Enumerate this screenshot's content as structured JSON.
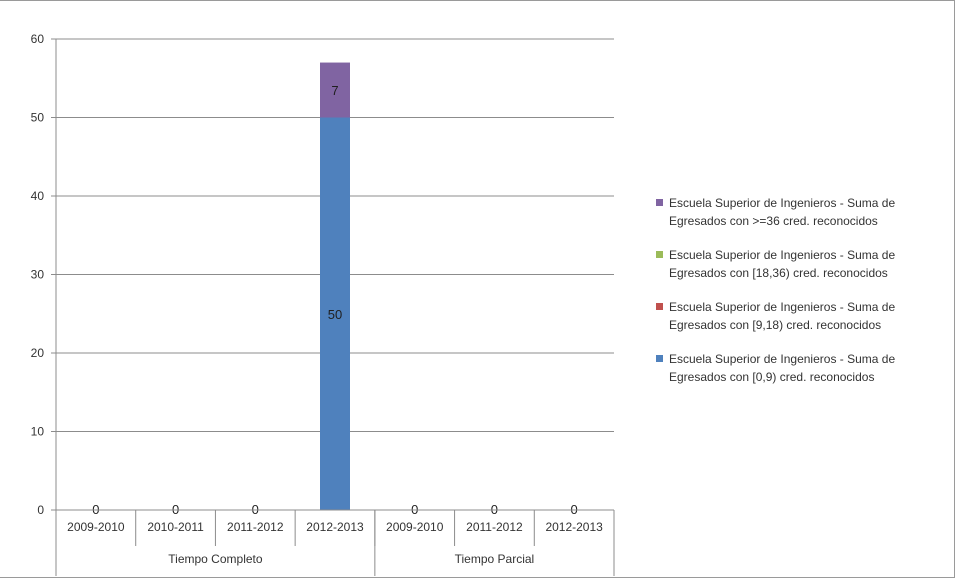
{
  "chart_data": {
    "type": "bar",
    "stacked": true,
    "groups": [
      {
        "label": "Tiempo Completo",
        "categories": [
          "2009-2010",
          "2010-2011",
          "2011-2012",
          "2012-2013"
        ]
      },
      {
        "label": "Tiempo Parcial",
        "categories": [
          "2009-2010",
          "2011-2012",
          "2012-2013"
        ]
      }
    ],
    "categories": [
      "2009-2010",
      "2010-2011",
      "2011-2012",
      "2012-2013",
      "2009-2010",
      "2011-2012",
      "2012-2013"
    ],
    "series": [
      {
        "name": "Escuela Superior de Ingenieros - Suma de Egresados con [0,9) cred. reconocidos",
        "color": "#4f81bd",
        "values": [
          0,
          0,
          0,
          50,
          0,
          0,
          0
        ]
      },
      {
        "name": "Escuela Superior de Ingenieros - Suma de Egresados con [9,18) cred. reconocidos",
        "color": "#c0504d",
        "values": [
          0,
          0,
          0,
          0,
          0,
          0,
          0
        ]
      },
      {
        "name": "Escuela Superior de Ingenieros - Suma de Egresados con [18,36) cred. reconocidos",
        "color": "#9bbb59",
        "values": [
          0,
          0,
          0,
          0,
          0,
          0,
          0
        ]
      },
      {
        "name": "Escuela Superior de Ingenieros - Suma de Egresados con >=36 cred. reconocidos",
        "color": "#8064a2",
        "values": [
          0,
          0,
          0,
          7,
          0,
          0,
          0
        ]
      }
    ],
    "data_labels": [
      {
        "category_index": 0,
        "text": "0"
      },
      {
        "category_index": 1,
        "text": "0"
      },
      {
        "category_index": 2,
        "text": "0"
      },
      {
        "category_index": 3,
        "series_index": 0,
        "text": "50"
      },
      {
        "category_index": 3,
        "series_index": 3,
        "text": "7"
      },
      {
        "category_index": 4,
        "text": "0"
      },
      {
        "category_index": 5,
        "text": "0"
      },
      {
        "category_index": 6,
        "text": "0"
      }
    ],
    "y_ticks": [
      "0",
      "10",
      "20",
      "30",
      "40",
      "50",
      "60"
    ],
    "ylim": [
      0,
      60
    ],
    "grid": true,
    "legend_position": "right",
    "legend_order": [
      3,
      2,
      1,
      0
    ]
  }
}
